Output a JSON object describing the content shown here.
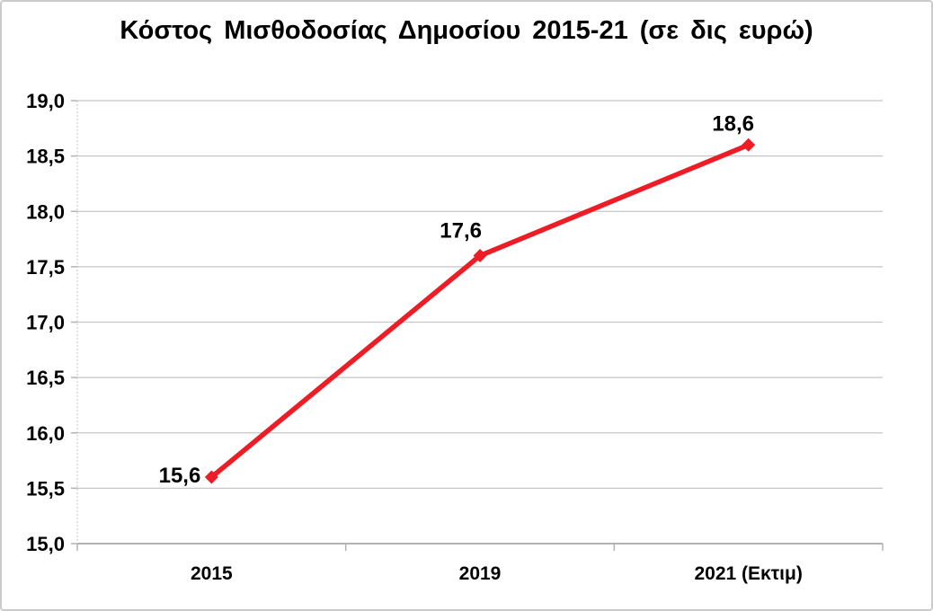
{
  "chart_data": {
    "type": "line",
    "title": "Κόστος Μισθοδοσίας Δημοσίου 2015-21 (σε δις ευρώ)",
    "categories": [
      "2015",
      "2019",
      "2021 (Εκτιμ)"
    ],
    "values": [
      15.6,
      17.6,
      18.6
    ],
    "point_labels": [
      "15,6",
      "17,6",
      "18,6"
    ],
    "y_ticks": [
      "15,0",
      "15,5",
      "16,0",
      "16,5",
      "17,0",
      "17,5",
      "18,0",
      "18,5",
      "19,0"
    ],
    "ylim": [
      15.0,
      19.0
    ],
    "y_step": 0.5,
    "xlabel": "",
    "ylabel": "",
    "grid": "horizontal",
    "legend": "none",
    "line_color": "#ee1c25",
    "marker": "diamond",
    "text_color": "#000000",
    "grid_color": "#c6c6c6",
    "axis_color": "#b3b3b3",
    "frame_border_color": "#cbcbcb",
    "background_color": "#ffffff"
  }
}
